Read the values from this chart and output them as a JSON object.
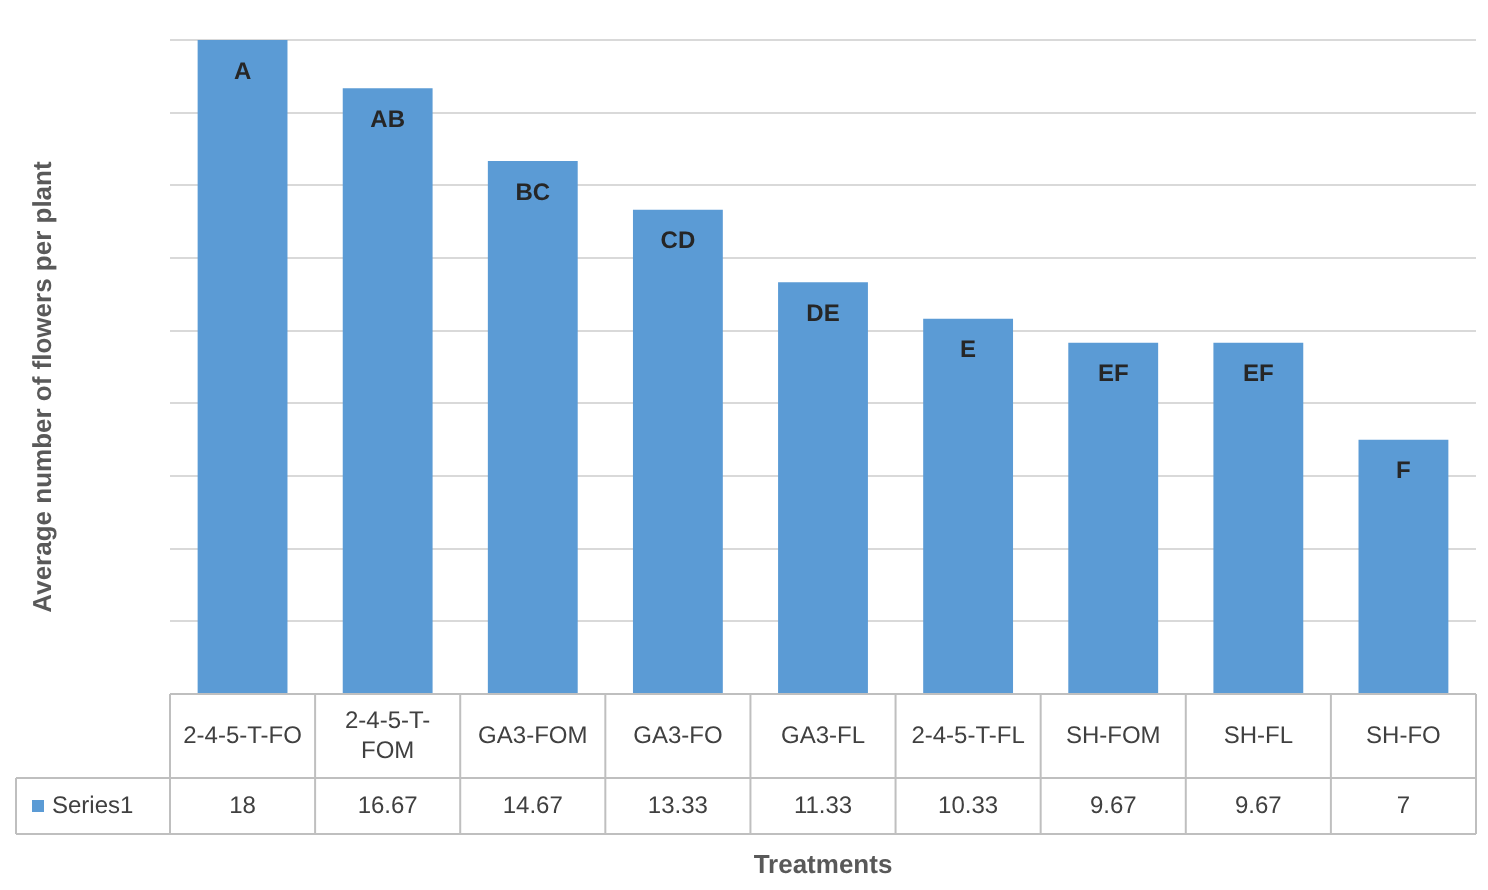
{
  "chart_data": {
    "type": "bar",
    "xlabel": "Treatments",
    "ylabel": "Average number of flowers per plant",
    "categories": [
      "2-4-5-T-FO",
      "2-4-5-T-FOM",
      "GA3-FOM",
      "GA3-FO",
      "GA3-FL",
      "2-4-5-T-FL",
      "SH-FOM",
      "SH-FL",
      "SH-FO"
    ],
    "series": [
      {
        "name": "Series1",
        "color": "#5b9bd5",
        "values": [
          18,
          16.67,
          14.67,
          13.33,
          11.33,
          10.33,
          9.67,
          9.67,
          7
        ]
      }
    ],
    "ylim": [
      0,
      18
    ],
    "yticks": [
      {
        "value": 0,
        "label": null
      },
      {
        "value": 2,
        "label": null
      },
      {
        "value": 4,
        "label": null
      },
      {
        "value": 6,
        "label": null
      },
      {
        "value": 8,
        "label": null
      },
      {
        "value": 10,
        "label": null
      },
      {
        "value": 12,
        "label": null
      },
      {
        "value": 14,
        "label": null
      },
      {
        "value": 16,
        "label": null
      },
      {
        "value": 18,
        "label": null
      }
    ],
    "grid": "y",
    "data_labels": true,
    "annotations": [
      {
        "text": "A",
        "x": "2-4-5-T-FO",
        "y": 18
      },
      {
        "text": "AB",
        "x": "2-4-5-T-FOM",
        "y": 16.67
      },
      {
        "text": "BC",
        "x": "GA3-FOM",
        "y": 14.67
      },
      {
        "text": "CD",
        "x": "GA3-FO",
        "y": 13.33
      },
      {
        "text": "DE",
        "x": "GA3-FL",
        "y": 11.33
      },
      {
        "text": "E",
        "x": "2-4-5-T-FL",
        "y": 10.33
      },
      {
        "text": "EF",
        "x": "SH-FOM",
        "y": 9.67
      },
      {
        "text": "EF",
        "x": "SH-FL",
        "y": 9.67
      },
      {
        "text": "F",
        "x": "SH-FO",
        "y": 7
      }
    ]
  }
}
